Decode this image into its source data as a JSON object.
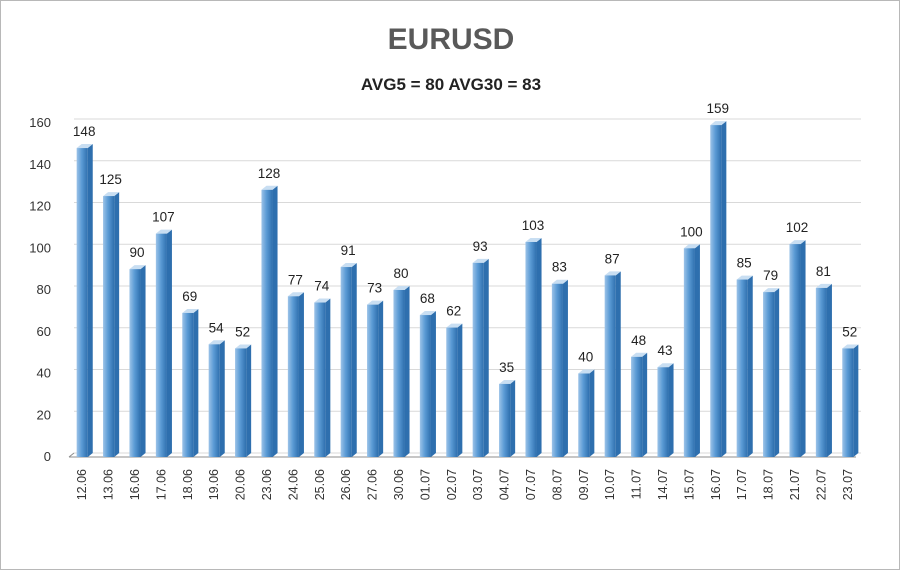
{
  "title": "EURUSD",
  "subtitle": "AVG5 = 80 AVG30 = 83",
  "colors": {
    "bar_front": "#5b9bd5",
    "bar_light": "#9cc3e8",
    "bar_top": "#c8def2",
    "bar_side": "#2e6fae",
    "grid": "#d9d9d9",
    "axis": "#8c8c8c"
  },
  "chart_data": {
    "type": "bar",
    "categories": [
      "12.06",
      "13.06",
      "16.06",
      "17.06",
      "18.06",
      "19.06",
      "20.06",
      "23.06",
      "24.06",
      "25.06",
      "26.06",
      "27.06",
      "30.06",
      "01.07",
      "02.07",
      "03.07",
      "04.07",
      "07.07",
      "08.07",
      "09.07",
      "10.07",
      "11.07",
      "14.07",
      "15.07",
      "16.07",
      "17.07",
      "18.07",
      "21.07",
      "22.07",
      "23.07"
    ],
    "values": [
      148,
      125,
      90,
      107,
      69,
      54,
      52,
      128,
      77,
      74,
      91,
      73,
      80,
      68,
      62,
      93,
      35,
      103,
      83,
      40,
      87,
      48,
      43,
      100,
      159,
      85,
      79,
      102,
      81,
      52
    ],
    "ylim": [
      0,
      160
    ],
    "yticks": [
      0,
      20,
      40,
      60,
      80,
      100,
      120,
      140,
      160
    ],
    "grid": true,
    "data_labels": true,
    "xlabel": "",
    "ylabel": ""
  }
}
